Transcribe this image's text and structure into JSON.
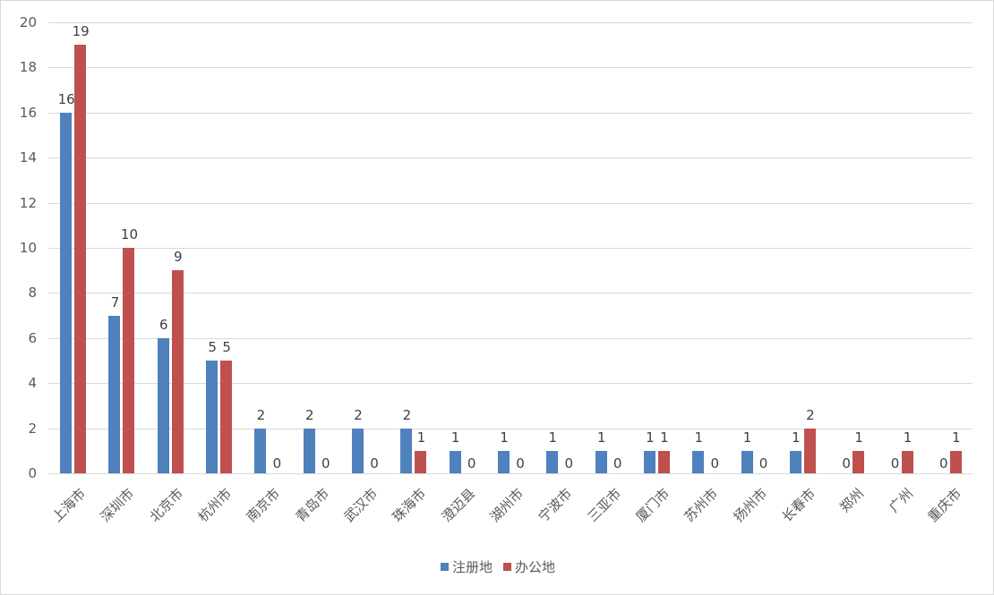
{
  "chart_data": {
    "type": "bar",
    "title": "",
    "xlabel": "",
    "ylabel": "",
    "ylim": [
      0,
      20
    ],
    "yticks": [
      0,
      2,
      4,
      6,
      8,
      10,
      12,
      14,
      16,
      18,
      20
    ],
    "grid": true,
    "legend_position": "bottom",
    "categories": [
      "上海市",
      "深圳市",
      "北京市",
      "杭州市",
      "南京市",
      "青岛市",
      "武汉市",
      "珠海市",
      "澄迈县",
      "湖州市",
      "宁波市",
      "三亚市",
      "厦门市",
      "苏州市",
      "扬州市",
      "长春市",
      "郑州",
      "广州",
      "重庆市"
    ],
    "series": [
      {
        "name": "注册地",
        "color": "#4f81bd",
        "values": [
          16,
          7,
          6,
          5,
          2,
          2,
          2,
          2,
          1,
          1,
          1,
          1,
          1,
          1,
          1,
          1,
          0,
          0,
          0
        ]
      },
      {
        "name": "办公地",
        "color": "#c0504d",
        "values": [
          19,
          10,
          9,
          5,
          0,
          0,
          0,
          1,
          0,
          0,
          0,
          0,
          1,
          0,
          0,
          2,
          1,
          1,
          1
        ]
      }
    ]
  }
}
